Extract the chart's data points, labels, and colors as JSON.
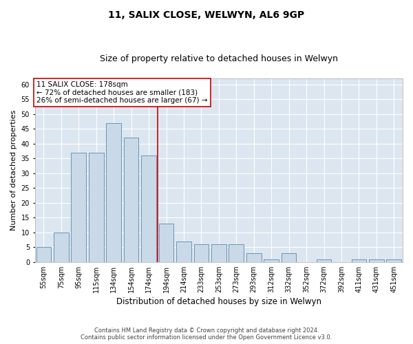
{
  "title": "11, SALIX CLOSE, WELWYN, AL6 9GP",
  "subtitle": "Size of property relative to detached houses in Welwyn",
  "xlabel": "Distribution of detached houses by size in Welwyn",
  "ylabel": "Number of detached properties",
  "categories": [
    "55sqm",
    "75sqm",
    "95sqm",
    "115sqm",
    "134sqm",
    "154sqm",
    "174sqm",
    "194sqm",
    "214sqm",
    "233sqm",
    "253sqm",
    "273sqm",
    "293sqm",
    "312sqm",
    "332sqm",
    "352sqm",
    "372sqm",
    "392sqm",
    "411sqm",
    "431sqm",
    "451sqm"
  ],
  "values": [
    5,
    10,
    37,
    37,
    47,
    42,
    36,
    13,
    7,
    6,
    6,
    6,
    3,
    1,
    3,
    0,
    1,
    0,
    1,
    1,
    1
  ],
  "bar_color": "#c9d9e8",
  "bar_edge_color": "#5a8aaa",
  "vline_x": 6.5,
  "vline_color": "#cc0000",
  "ylim": [
    0,
    62
  ],
  "yticks": [
    0,
    5,
    10,
    15,
    20,
    25,
    30,
    35,
    40,
    45,
    50,
    55,
    60
  ],
  "annotation_text_line1": "11 SALIX CLOSE: 178sqm",
  "annotation_text_line2": "← 72% of detached houses are smaller (183)",
  "annotation_text_line3": "26% of semi-detached houses are larger (67) →",
  "annotation_box_color": "#ffffff",
  "annotation_box_edge": "#cc0000",
  "fig_bg_color": "#ffffff",
  "plot_bg_color": "#dce6f0",
  "grid_color": "#ffffff",
  "footer_line1": "Contains HM Land Registry data © Crown copyright and database right 2024.",
  "footer_line2": "Contains public sector information licensed under the Open Government Licence v3.0.",
  "title_fontsize": 10,
  "subtitle_fontsize": 9,
  "tick_fontsize": 7,
  "ylabel_fontsize": 8,
  "xlabel_fontsize": 8.5,
  "annotation_fontsize": 7.5
}
